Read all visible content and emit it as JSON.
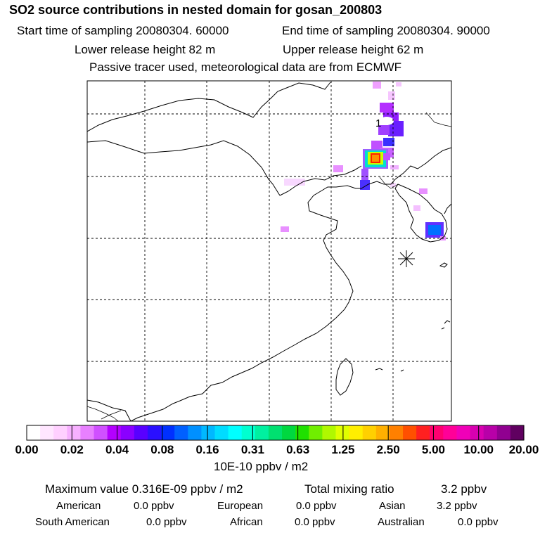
{
  "header": {
    "title": "SO2 source contributions in nested domain for gosan_200803",
    "start_time": "Start time of sampling 20080304. 60000",
    "end_time": "End time of sampling 20080304. 90000",
    "lower_release": "Lower release height   82 m",
    "upper_release": "Upper release height   62 m",
    "tracer_note": "Passive tracer used, meteorological data are from ECMWF"
  },
  "map": {
    "marker_label": "1",
    "receptor_marker": "asterisk-icon"
  },
  "colorbar": {
    "colors": [
      "#ffffff",
      "#ffe6ff",
      "#ffd0ff",
      "#f7b0ff",
      "#e880ff",
      "#d050ff",
      "#b400ff",
      "#8a00ff",
      "#5800ff",
      "#2a10ff",
      "#0030ff",
      "#0060ff",
      "#0090ff",
      "#00b8ff",
      "#00dcff",
      "#00ffff",
      "#00ffd0",
      "#00f0a0",
      "#00e070",
      "#00d840",
      "#20e000",
      "#70ee00",
      "#b0f800",
      "#e0ff00",
      "#ffee00",
      "#ffd000",
      "#ffb000",
      "#ff8000",
      "#ff5000",
      "#ff2020",
      "#ff0070",
      "#ff0098",
      "#f000b8",
      "#d800b0",
      "#b800a8",
      "#900090",
      "#600060"
    ],
    "labels": [
      "0.00",
      "0.02",
      "0.04",
      "0.08",
      "0.16",
      "0.31",
      "0.63",
      "1.25",
      "2.50",
      "5.00",
      "10.00",
      "20.00"
    ],
    "units": "10E-10 ppbv / m2"
  },
  "summary": {
    "max_value": "Maximum value  0.316E-09 ppbv / m2",
    "total_mixing": "Total mixing ratio",
    "total_value": "3.2 ppbv",
    "american_label": "American",
    "american_value": "0.0 ppbv",
    "european_label": "European",
    "european_value": "0.0 ppbv",
    "asian_label": "Asian",
    "asian_value": "3.2 ppbv",
    "south_american_label": "South American",
    "south_american_value": "0.0 ppbv",
    "african_label": "African",
    "african_value": "0.0 ppbv",
    "australian_label": "Australian",
    "australian_value": "0.0 ppbv"
  }
}
